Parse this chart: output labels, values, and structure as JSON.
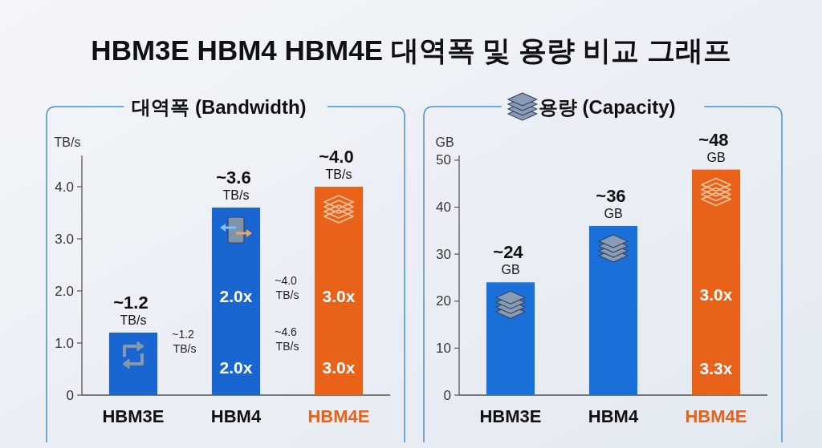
{
  "chart_data": [
    {
      "type": "bar",
      "title": "HBM3E HBM4 HBM4E 대역폭 및 용량 비교 그래프",
      "subtitle": "대역폭 (Bandwidth)",
      "ylabel": "TB/s",
      "categories": [
        "HBM3E",
        "HBM4",
        "HBM4E"
      ],
      "values": [
        1.2,
        3.6,
        4.0
      ],
      "colors": [
        "#1a66d0",
        "#1a66d0",
        "#e8621a"
      ],
      "value_labels": [
        "~1.2 TB/s",
        "~3.6 TB/s",
        "~4.0 TB/s"
      ],
      "ylim": [
        0,
        4.6
      ],
      "yticks": [
        0,
        {
          "value": 1,
          "label": "1.0"
        },
        {
          "value": 2,
          "label": "2.0"
        },
        {
          "value": 3,
          "label": "3.0"
        },
        {
          "value": 4,
          "label": "4.0"
        }
      ],
      "annotations": [
        "2.0x",
        "2.0x",
        "3.0x",
        "3.0x",
        "~1.2 TB/s",
        "~4.0 TB/s",
        "~4.6 TB/s"
      ]
    },
    {
      "type": "bar",
      "subtitle": "용량 (Capacity)",
      "ylabel": "GB",
      "categories": [
        "HBM3E",
        "HBM4",
        "HBM4E"
      ],
      "values": [
        24,
        36,
        48
      ],
      "colors": [
        "#1a6fd8",
        "#1a6fd8",
        "#e8621a"
      ],
      "value_labels": [
        "~24 GB",
        "~36 GB",
        "~48 GB"
      ],
      "ylim": [
        0,
        51
      ],
      "yticks": [
        0,
        10,
        20,
        30,
        40,
        50
      ],
      "annotations": [
        "3.0x",
        "3.3x"
      ]
    }
  ]
}
